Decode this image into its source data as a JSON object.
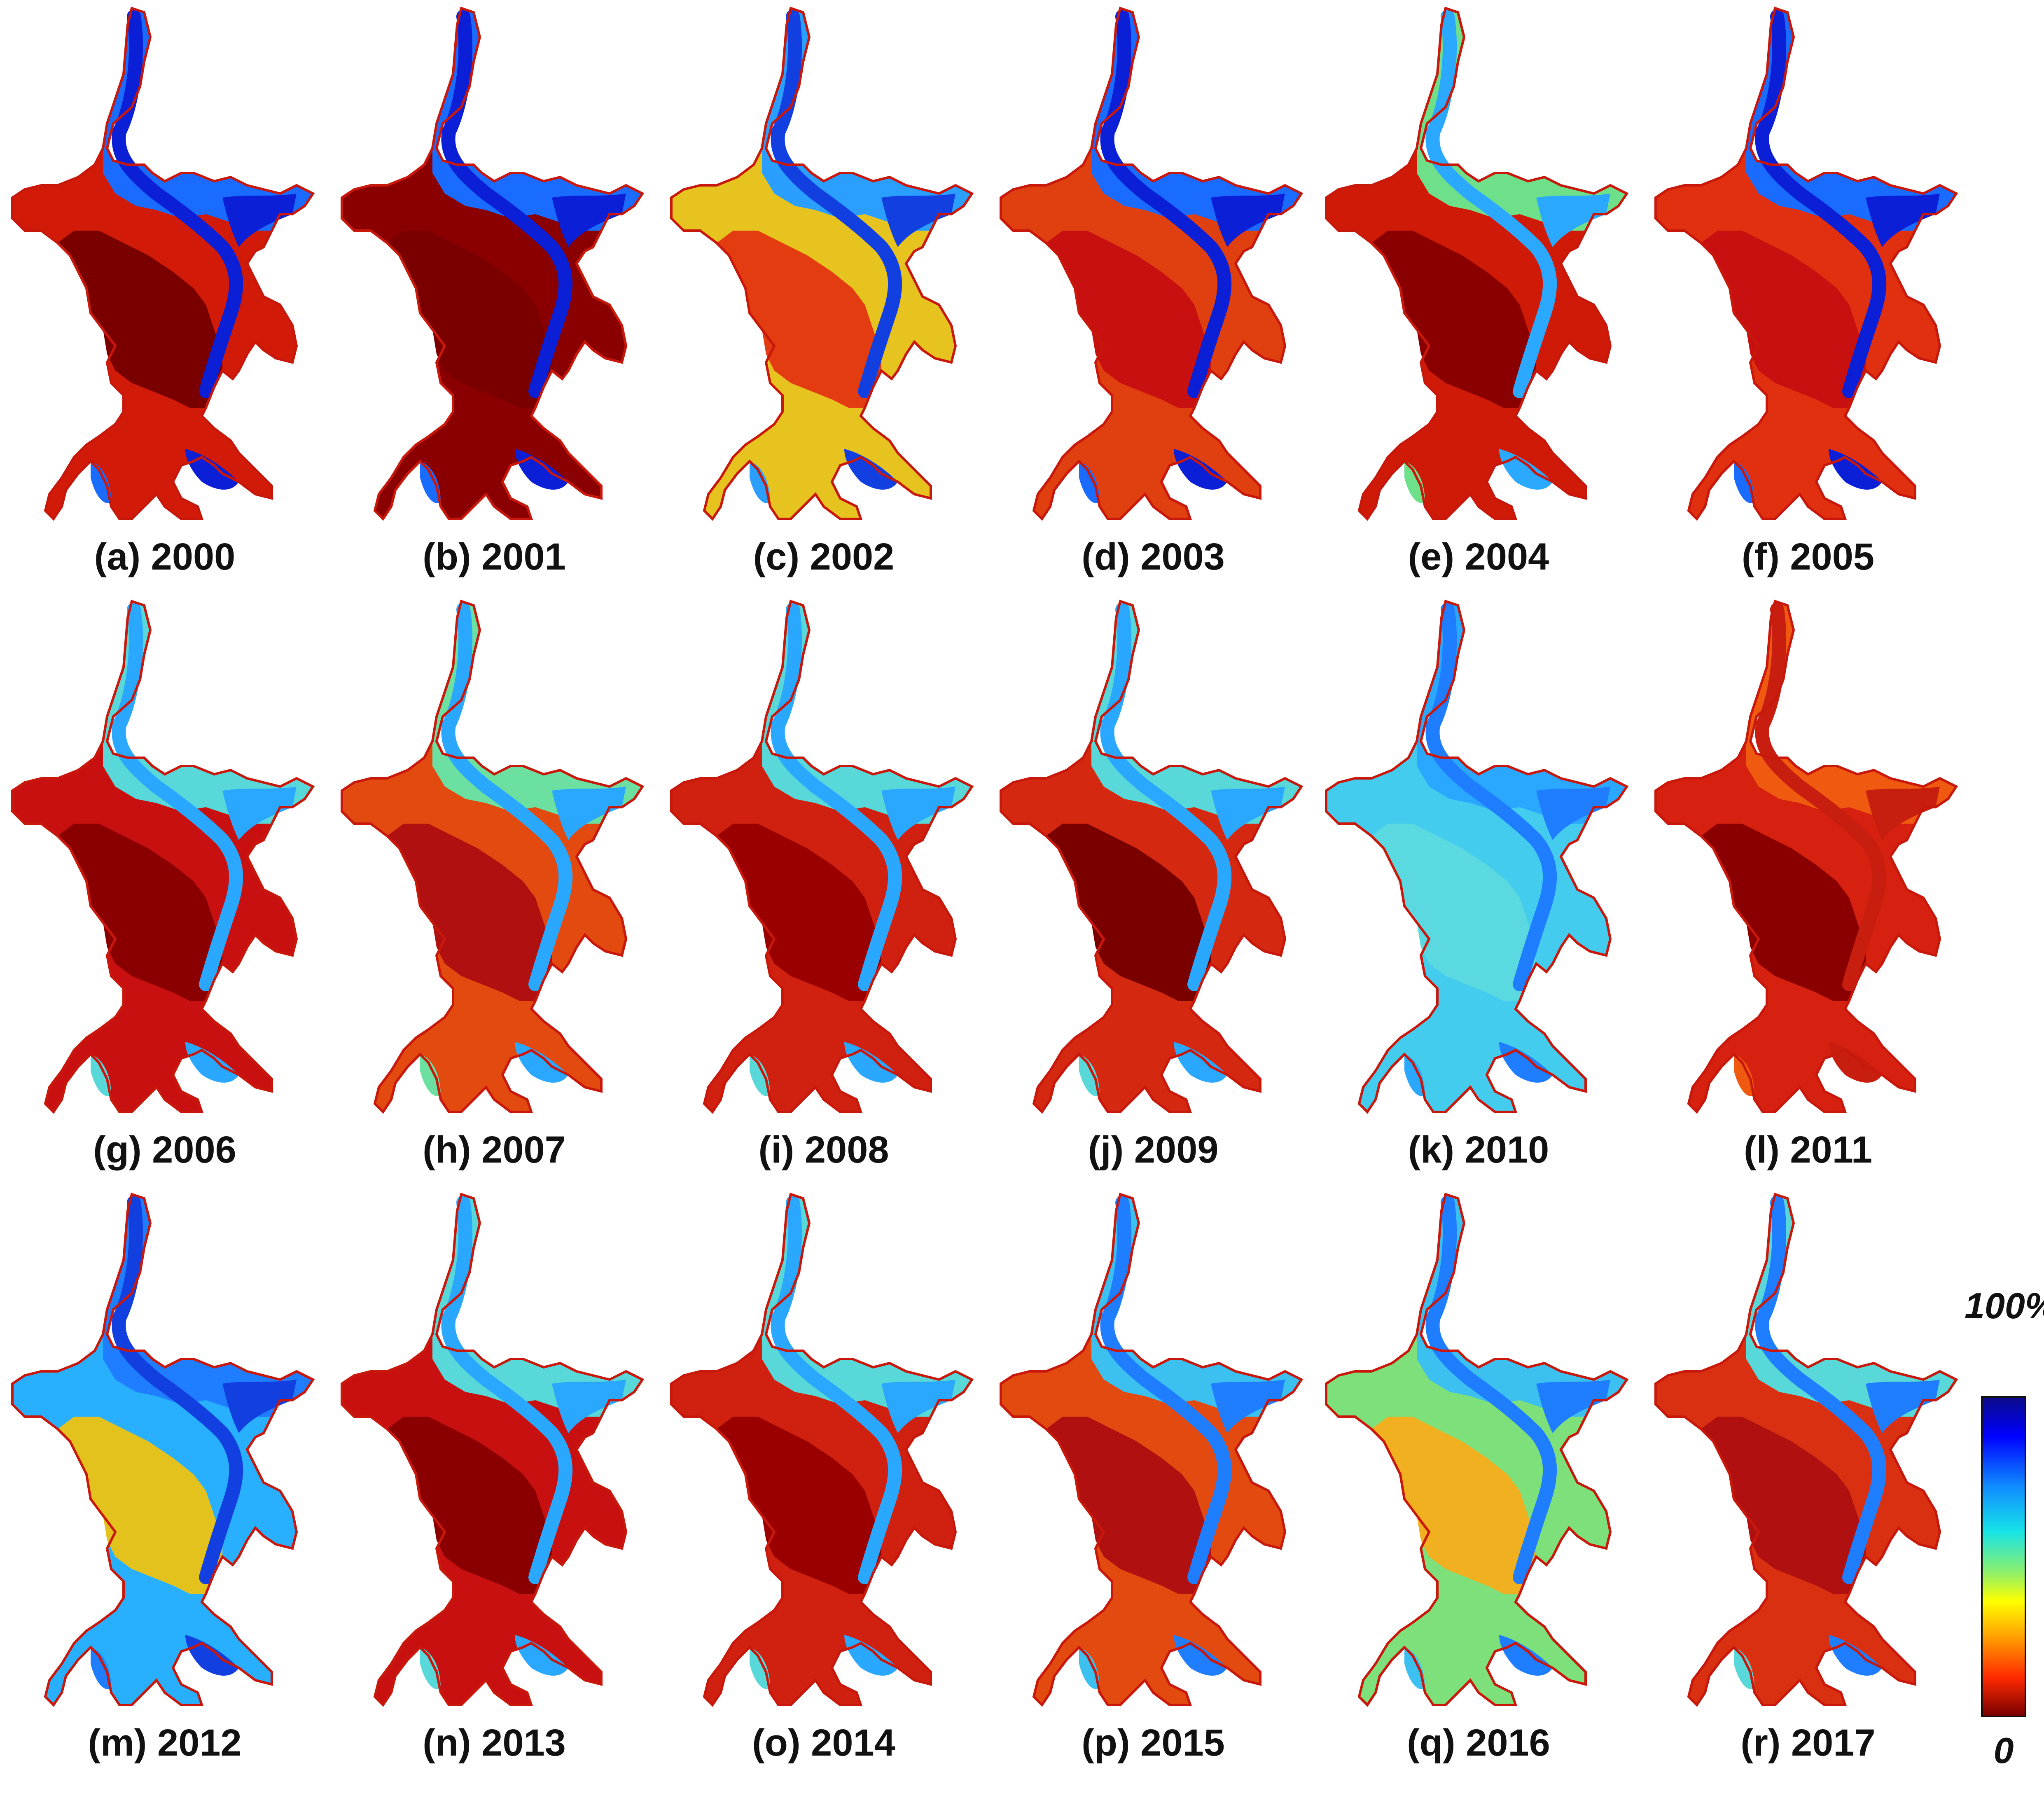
{
  "panels": [
    {
      "label": "(a) 2000",
      "tone": [
        "#0a1fd6",
        "#d21a08",
        "#7a0000",
        "#1a6bff"
      ]
    },
    {
      "label": "(b) 2001",
      "tone": [
        "#0a1fd6",
        "#8a0000",
        "#7a0000",
        "#1a6bff"
      ]
    },
    {
      "label": "(c) 2002",
      "tone": [
        "#1240e0",
        "#e7c320",
        "#e23c10",
        "#2a9fff"
      ]
    },
    {
      "label": "(d) 2003",
      "tone": [
        "#0a1fd6",
        "#e0400f",
        "#c81010",
        "#1a6bff"
      ]
    },
    {
      "label": "(e) 2004",
      "tone": [
        "#2ba8ff",
        "#d01a08",
        "#8a0000",
        "#6fe08a"
      ]
    },
    {
      "label": "(f) 2005",
      "tone": [
        "#0a1fd6",
        "#e0300f",
        "#c81010",
        "#1a6bff"
      ]
    },
    {
      "label": "(g) 2006",
      "tone": [
        "#2aa8ff",
        "#c81010",
        "#8a0000",
        "#58d8d8"
      ]
    },
    {
      "label": "(h) 2007",
      "tone": [
        "#2aa8ff",
        "#e24a10",
        "#b01010",
        "#6be0a0"
      ]
    },
    {
      "label": "(i) 2008",
      "tone": [
        "#2aa8ff",
        "#d02010",
        "#9a0000",
        "#58d8d8"
      ]
    },
    {
      "label": "(j) 2009",
      "tone": [
        "#2aa8ff",
        "#d42810",
        "#7a0000",
        "#58d8d8"
      ]
    },
    {
      "label": "(k) 2010",
      "tone": [
        "#1f7dff",
        "#44ccee",
        "#5bd9e0",
        "#2aa8ff"
      ]
    },
    {
      "label": "(l) 2011",
      "tone": [
        "#c81e10",
        "#d62010",
        "#8a0000",
        "#ef5a10"
      ]
    },
    {
      "label": "(m) 2012",
      "tone": [
        "#1240e0",
        "#28b0ff",
        "#e4c21e",
        "#1f7dff"
      ]
    },
    {
      "label": "(n) 2013",
      "tone": [
        "#2aa8ff",
        "#c81010",
        "#8a0000",
        "#58d8d8"
      ]
    },
    {
      "label": "(o) 2014",
      "tone": [
        "#2aa8ff",
        "#d02010",
        "#9a0000",
        "#58d8d8"
      ]
    },
    {
      "label": "(p) 2015",
      "tone": [
        "#1f7dff",
        "#e24a10",
        "#b01010",
        "#3cc0f0"
      ]
    },
    {
      "label": "(q) 2016",
      "tone": [
        "#1f7dff",
        "#7ee07a",
        "#f0b020",
        "#3cc0f0"
      ]
    },
    {
      "label": "(r) 2017",
      "tone": [
        "#1f7dff",
        "#d83010",
        "#b01010",
        "#58d8d8"
      ]
    }
  ],
  "colorbar": {
    "max_label": "100%",
    "min_label": "0",
    "colors": [
      "#0b0b8a",
      "#0000ff",
      "#0f8cff",
      "#17e3e8",
      "#8df06a",
      "#ffff00",
      "#ff9900",
      "#ff2a00",
      "#7a0000"
    ]
  }
}
